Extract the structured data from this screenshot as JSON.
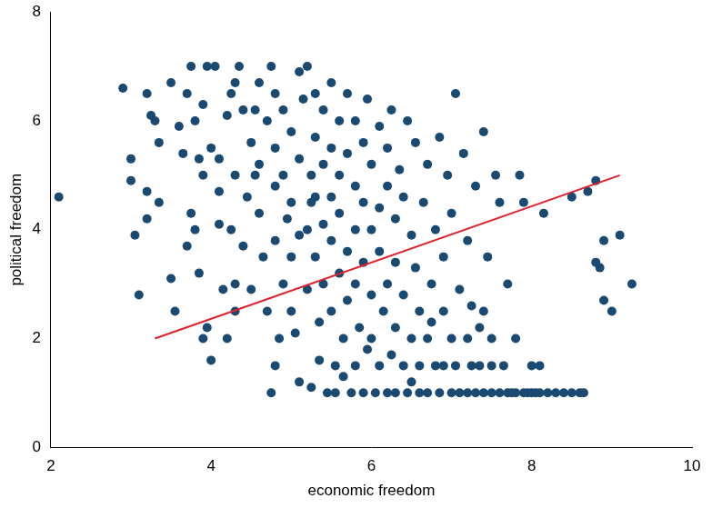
{
  "chart_data": {
    "type": "scatter",
    "x_label": "economic freedom",
    "y_label": "political freedom",
    "xlim": [
      2,
      10
    ],
    "xticks": [
      2,
      4,
      6,
      8,
      10
    ],
    "ylim": [
      0,
      8
    ],
    "yticks": [
      0,
      2,
      4,
      6,
      8
    ],
    "grid": false,
    "series": [
      {
        "type": "scatter",
        "marker": "circle",
        "color": "#1a4a72",
        "x": [
          2.1,
          2.9,
          3.0,
          3.0,
          3.05,
          3.2,
          3.25,
          3.3,
          3.35,
          3.2,
          3.2,
          3.35,
          3.1,
          3.5,
          3.55,
          3.5,
          3.6,
          3.65,
          3.7,
          3.75,
          3.8,
          3.9,
          3.95,
          4.05,
          3.85,
          3.9,
          4.0,
          4.1,
          3.75,
          3.8,
          3.7,
          3.85,
          3.95,
          3.9,
          4.0,
          4.1,
          4.1,
          4.15,
          4.2,
          4.25,
          4.3,
          4.35,
          4.4,
          4.3,
          4.25,
          4.3,
          4.3,
          4.2,
          4.4,
          4.45,
          4.5,
          4.5,
          4.55,
          4.6,
          4.6,
          4.6,
          4.65,
          4.7,
          4.75,
          4.7,
          4.8,
          4.8,
          4.8,
          4.8,
          4.75,
          4.8,
          4.85,
          4.9,
          4.9,
          4.95,
          4.9,
          5.0,
          5.0,
          5.0,
          5.0,
          5.05,
          5.1,
          5.1,
          5.1,
          5.1,
          5.15,
          5.2,
          5.25,
          5.2,
          5.2,
          5.25,
          5.3,
          5.3,
          5.3,
          5.3,
          5.35,
          5.35,
          5.4,
          5.4,
          5.4,
          5.4,
          5.45,
          5.5,
          5.5,
          5.5,
          5.5,
          5.5,
          5.55,
          5.55,
          5.6,
          5.6,
          5.6,
          5.6,
          5.65,
          5.65,
          5.7,
          5.7,
          5.7,
          5.7,
          5.75,
          5.8,
          5.8,
          5.8,
          5.8,
          5.8,
          5.85,
          5.9,
          5.9,
          5.9,
          5.9,
          5.95,
          6.0,
          6.0,
          6.0,
          6.0,
          6.05,
          6.1,
          6.1,
          6.1,
          6.1,
          6.15,
          6.2,
          6.2,
          6.2,
          6.2,
          6.25,
          6.25,
          6.3,
          6.3,
          6.3,
          6.3,
          6.35,
          6.4,
          6.4,
          6.4,
          6.45,
          6.45,
          6.5,
          6.5,
          6.5,
          6.55,
          6.55,
          6.6,
          6.6,
          6.6,
          6.65,
          6.7,
          6.7,
          6.7,
          6.75,
          6.8,
          6.8,
          6.85,
          6.85,
          6.9,
          6.9,
          6.9,
          6.95,
          7.0,
          7.0,
          7.0,
          7.05,
          7.05,
          7.1,
          7.1,
          7.15,
          7.2,
          7.2,
          7.2,
          7.25,
          7.25,
          7.3,
          7.3,
          7.35,
          7.4,
          7.4,
          7.4,
          7.45,
          7.5,
          7.5,
          7.5,
          7.55,
          7.6,
          7.6,
          7.65,
          7.7,
          7.7,
          7.75,
          7.8,
          7.8,
          7.85,
          7.9,
          7.9,
          7.95,
          8.0,
          8.0,
          8.05,
          8.1,
          8.1,
          8.15,
          8.2,
          8.3,
          8.4,
          8.5,
          8.6,
          8.65,
          8.5,
          8.7,
          8.8,
          8.8,
          8.85,
          8.9,
          8.9,
          9.0,
          9.1,
          9.25,
          7.35,
          6.75,
          5.95,
          5.25,
          4.55
        ],
        "values": [
          4.6,
          6.6,
          5.3,
          4.9,
          3.9,
          6.5,
          6.1,
          6.0,
          5.6,
          4.7,
          4.2,
          4.5,
          2.8,
          3.1,
          2.5,
          6.7,
          5.9,
          5.4,
          6.5,
          7.0,
          6.0,
          6.3,
          7.0,
          7.0,
          5.3,
          5.0,
          5.5,
          5.3,
          4.3,
          4.0,
          3.7,
          3.2,
          2.2,
          2.0,
          1.6,
          4.7,
          4.1,
          2.9,
          6.1,
          6.5,
          6.7,
          7.0,
          6.2,
          5.0,
          4.0,
          3.0,
          2.5,
          2.0,
          3.7,
          4.6,
          5.6,
          2.9,
          6.2,
          6.7,
          5.2,
          4.3,
          3.5,
          2.5,
          7.0,
          6.0,
          6.5,
          5.5,
          4.8,
          3.8,
          1.0,
          1.5,
          2.0,
          6.2,
          5.0,
          4.2,
          3.0,
          5.8,
          4.5,
          3.5,
          2.5,
          2.1,
          6.9,
          5.3,
          3.9,
          1.2,
          6.4,
          7.0,
          5.0,
          4.0,
          2.9,
          1.1,
          6.5,
          5.7,
          4.6,
          3.5,
          2.3,
          1.6,
          6.2,
          5.2,
          4.1,
          3.0,
          1.0,
          6.7,
          5.5,
          4.6,
          3.8,
          2.5,
          1.5,
          1.0,
          6.0,
          5.0,
          4.3,
          3.2,
          2.0,
          1.3,
          6.5,
          5.4,
          3.6,
          2.7,
          1.0,
          6.0,
          4.8,
          4.0,
          3.0,
          1.5,
          2.2,
          5.6,
          4.5,
          3.4,
          1.0,
          1.8,
          5.2,
          4.0,
          2.8,
          2.0,
          1.0,
          5.9,
          4.4,
          3.6,
          1.5,
          2.5,
          5.5,
          4.8,
          3.0,
          1.0,
          6.2,
          1.7,
          4.2,
          3.4,
          2.2,
          1.0,
          5.1,
          1.5,
          2.8,
          4.6,
          6.0,
          1.0,
          3.9,
          2.0,
          1.2,
          5.6,
          3.3,
          2.5,
          1.5,
          1.0,
          4.5,
          5.2,
          2.0,
          1.0,
          3.0,
          4.0,
          1.5,
          5.7,
          1.0,
          2.5,
          3.5,
          1.5,
          5.0,
          1.0,
          2.0,
          4.3,
          6.5,
          1.5,
          1.0,
          2.9,
          5.4,
          2.0,
          1.0,
          3.8,
          1.5,
          2.6,
          1.0,
          4.8,
          1.5,
          2.5,
          1.0,
          5.8,
          3.5,
          1.5,
          1.0,
          2.0,
          5.0,
          1.0,
          4.5,
          1.5,
          1.0,
          3.0,
          1.0,
          1.0,
          2.0,
          5.0,
          1.0,
          4.5,
          1.0,
          1.0,
          1.5,
          1.0,
          1.0,
          1.5,
          4.3,
          1.0,
          1.0,
          1.0,
          1.0,
          1.0,
          1.0,
          4.6,
          4.7,
          4.9,
          3.4,
          3.3,
          3.8,
          2.7,
          2.5,
          3.9,
          3.0,
          2.2,
          2.3,
          6.4,
          4.5,
          5.0
        ]
      },
      {
        "type": "line",
        "line_style": "solid",
        "color": "#e0202a",
        "x": [
          3.3,
          9.1
        ],
        "values": [
          2.0,
          5.0
        ]
      }
    ]
  }
}
